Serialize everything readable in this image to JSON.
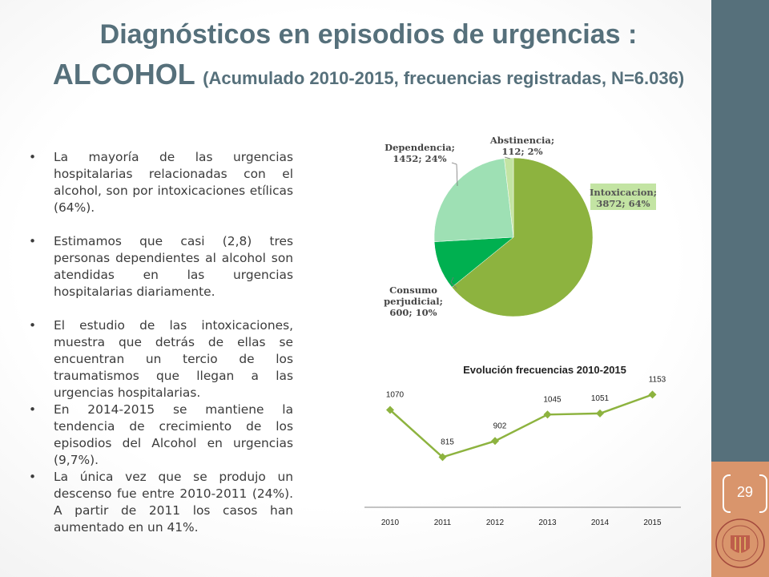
{
  "title": {
    "line1": "Diagnósticos en episodios de urgencias :",
    "line2_main": "ALCOHOL",
    "line2_sub": "(Acumulado 2010-2015, frecuencias registradas, N=6.036)"
  },
  "bullets": [
    "La mayoría de las urgencias hospitalarias relacionadas con el alcohol, son por intoxicaciones etílicas (64%).",
    "Estimamos que casi (2,8) tres personas dependientes al alcohol son atendidas en las urgencias hospitalarias diariamente.",
    "El estudio de las intoxicaciones, muestra que detrás de ellas se encuentran un tercio de los traumatismos que llegan a las urgencias hospitalarias.",
    "En 2014-2015 se mantiene la tendencia de crecimiento de los episodios del Alcohol en urgencias (9,7%).",
    "La única vez que se produjo un descenso fue entre 2010-2011 (24%). A partir de 2011 los casos han aumentado en un 41%."
  ],
  "page_number": "29",
  "colors": {
    "header": "#56707b",
    "sidebar": "#56707b",
    "sidebar_accent": "#d9956c",
    "pie": [
      "#8db33f",
      "#00b050",
      "#9ee0b4",
      "#c3e4a3"
    ],
    "line": "#8db33f"
  },
  "chart_data": [
    {
      "type": "pie",
      "slices": [
        {
          "label": "Intoxicacion",
          "value": 3872,
          "percent": 64,
          "text_lines": [
            "Intoxicacion;",
            "3872; 64%"
          ]
        },
        {
          "label": "Consumo perjudicial",
          "value": 600,
          "percent": 10,
          "text_lines": [
            "Consumo",
            "perjudicial;",
            "600; 10%"
          ]
        },
        {
          "label": "Dependencia",
          "value": 1452,
          "percent": 24,
          "text_lines": [
            "Dependencia;",
            "1452; 24%"
          ]
        },
        {
          "label": "Abstinencia",
          "value": 112,
          "percent": 2,
          "text_lines": [
            "Abstinencia;",
            "112; 2%"
          ]
        }
      ]
    },
    {
      "type": "line",
      "title": "Evolución frecuencias 2010-2015",
      "categories": [
        "2010",
        "2011",
        "2012",
        "2013",
        "2014",
        "2015"
      ],
      "values": [
        1070,
        815,
        902,
        1045,
        1051,
        1153
      ],
      "labels": [
        "1070",
        "815",
        "902",
        "1045",
        "1051",
        "1153"
      ]
    }
  ]
}
